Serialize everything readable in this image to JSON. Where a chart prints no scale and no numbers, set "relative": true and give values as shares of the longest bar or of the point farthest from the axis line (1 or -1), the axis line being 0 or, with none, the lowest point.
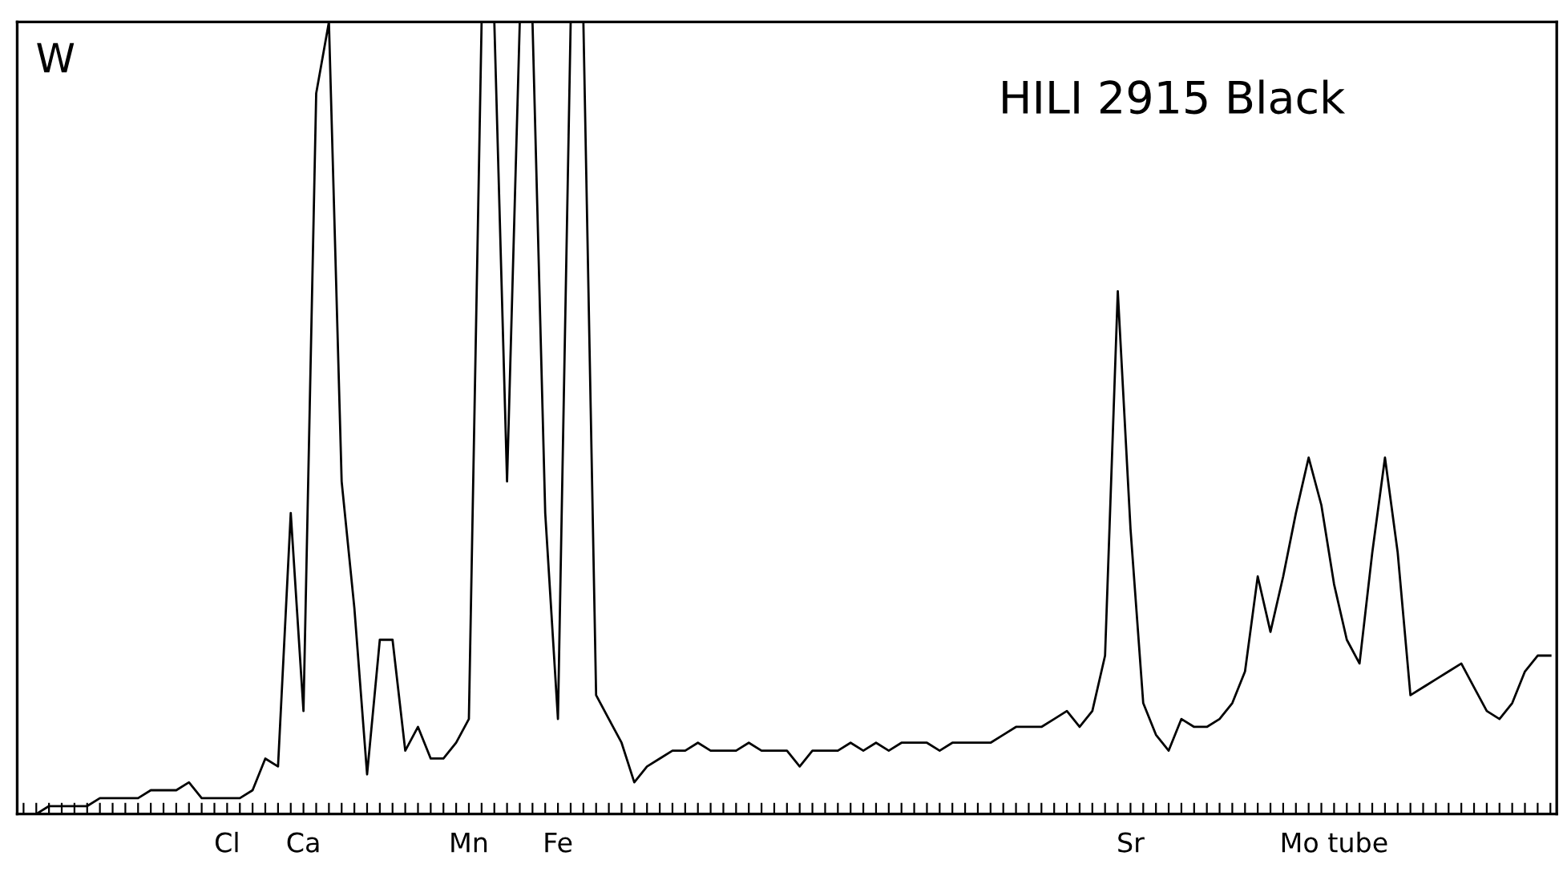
{
  "chart_data": {
    "type": "line",
    "title": "HILI 2915 Black",
    "relative": true,
    "annotations": [
      "W"
    ],
    "categories": [
      null,
      null,
      null,
      null,
      null,
      null,
      null,
      null,
      null,
      null,
      null,
      null,
      null,
      null,
      null,
      null,
      "Cl",
      null,
      null,
      null,
      null,
      null,
      "Ca",
      null,
      null,
      null,
      null,
      null,
      null,
      null,
      null,
      null,
      null,
      null,
      null,
      "Mn",
      null,
      null,
      null,
      null,
      null,
      null,
      "Fe",
      null,
      null,
      null,
      null,
      null,
      null,
      null,
      null,
      null,
      null,
      null,
      null,
      null,
      null,
      null,
      null,
      null,
      null,
      null,
      null,
      null,
      null,
      null,
      null,
      null,
      null,
      null,
      null,
      null,
      null,
      null,
      null,
      null,
      null,
      null,
      null,
      null,
      null,
      null,
      null,
      null,
      null,
      null,
      null,
      "Sr",
      null,
      null,
      null,
      null,
      null,
      null,
      null,
      null,
      null,
      null,
      null,
      null,
      null,
      null,
      null,
      "Mo tube",
      null,
      null,
      null,
      null,
      null,
      null,
      null,
      null,
      null,
      null,
      null,
      null,
      null,
      null,
      null,
      null,
      null
    ],
    "series": [
      {
        "color": "#000000",
        "values": [
          0.0,
          0.0,
          0.01,
          0.01,
          0.01,
          0.01,
          0.02,
          0.02,
          0.02,
          0.02,
          0.03,
          0.03,
          0.03,
          0.04,
          0.02,
          0.02,
          0.02,
          0.02,
          0.03,
          0.07,
          0.06,
          0.38,
          0.13,
          0.91,
          1,
          0.42,
          0.26,
          0.05,
          0.22,
          0.22,
          0.08,
          0.11,
          0.07,
          0.07,
          0.09,
          0.12,
          1,
          1,
          0.42,
          1,
          1,
          0.38,
          0.12,
          1,
          1,
          0.15,
          0.12,
          0.09,
          0.04,
          0.06,
          0.07,
          0.08,
          0.08,
          0.09,
          0.08,
          0.08,
          0.08,
          0.09,
          0.08,
          0.08,
          0.08,
          0.06,
          0.08,
          0.08,
          0.08,
          0.09,
          0.08,
          0.09,
          0.08,
          0.09,
          0.09,
          0.09,
          0.08,
          0.09,
          0.09,
          0.09,
          0.09,
          0.1,
          0.11,
          0.11,
          0.11,
          0.12,
          0.13,
          0.11,
          0.13,
          0.2,
          0.66,
          0.36,
          0.14,
          0.1,
          0.08,
          0.12,
          0.11,
          0.11,
          0.12,
          0.14,
          0.18,
          0.3,
          0.23,
          0.3,
          0.38,
          0.45,
          0.39,
          0.29,
          0.22,
          0.19,
          0.33,
          0.45,
          0.33,
          0.15,
          0.16,
          0.17,
          0.18,
          0.19,
          0.16,
          0.13,
          0.12,
          0.14,
          0.18,
          0.2,
          0.2
        ]
      }
    ]
  }
}
